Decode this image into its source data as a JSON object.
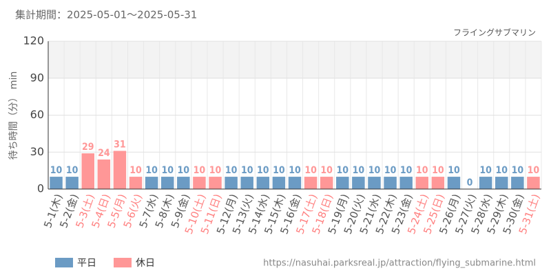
{
  "chart_data": {
    "type": "bar",
    "title": "集計期間：2025-05-01～2025-05-31",
    "subtitle": "フライングサブマリン",
    "y_label": "待ち時間（分） min",
    "source": "https://nasuhai.parksreal.jp/attraction/flying_submarine.html",
    "categories": [
      "5-1(木)",
      "5-2(金)",
      "5-3(土)",
      "5-4(日)",
      "5-5(月)",
      "5-6(火)",
      "5-7(水)",
      "5-8(木)",
      "5-9(金)",
      "5-10(土)",
      "5-11(日)",
      "5-12(月)",
      "5-13(火)",
      "5-14(水)",
      "5-15(木)",
      "5-16(金)",
      "5-17(土)",
      "5-18(日)",
      "5-19(月)",
      "5-20(火)",
      "5-21(水)",
      "5-22(木)",
      "5-23(金)",
      "5-24(土)",
      "5-25(日)",
      "5-26(月)",
      "5-27(火)",
      "5-28(水)",
      "5-29(木)",
      "5-30(金)",
      "5-31(土)"
    ],
    "series": [
      {
        "name": "平日",
        "color": "#6b9bc4",
        "values": [
          10,
          10,
          null,
          null,
          null,
          null,
          10,
          10,
          10,
          null,
          null,
          10,
          10,
          10,
          10,
          10,
          null,
          null,
          10,
          10,
          10,
          10,
          10,
          null,
          null,
          10,
          0,
          10,
          10,
          10,
          null
        ]
      },
      {
        "name": "休日",
        "color": "#ff9797",
        "values": [
          null,
          null,
          29,
          24,
          31,
          10,
          null,
          null,
          null,
          10,
          10,
          null,
          null,
          null,
          null,
          null,
          10,
          10,
          null,
          null,
          null,
          null,
          null,
          10,
          10,
          null,
          null,
          null,
          null,
          null,
          10
        ]
      }
    ],
    "ylim": [
      0,
      120
    ],
    "yticks": [
      0,
      30,
      60,
      90,
      120
    ],
    "grid": true
  }
}
